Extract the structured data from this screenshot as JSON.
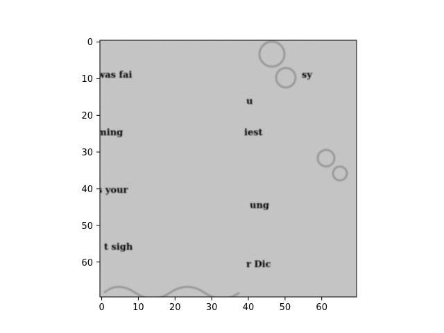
{
  "image": {
    "description_domain": "Grayscale matplotlib image display of a scanned text fragment",
    "visible_words": [
      "was fai",
      "sy",
      "u",
      "ming",
      "iest",
      "s your",
      "ung",
      "t sigh",
      "r Dic"
    ],
    "colors": {
      "background": "#c8c8c8",
      "ink": "#111111",
      "faint_ink": "#6e6e6e",
      "axis": "#000000"
    }
  },
  "axes": {
    "x_ticks": [
      "0",
      "10",
      "20",
      "30",
      "40",
      "50",
      "60"
    ],
    "y_ticks": [
      "0",
      "10",
      "20",
      "30",
      "40",
      "50",
      "60"
    ],
    "x_range": [
      0,
      69
    ],
    "y_range": [
      0,
      69
    ]
  }
}
